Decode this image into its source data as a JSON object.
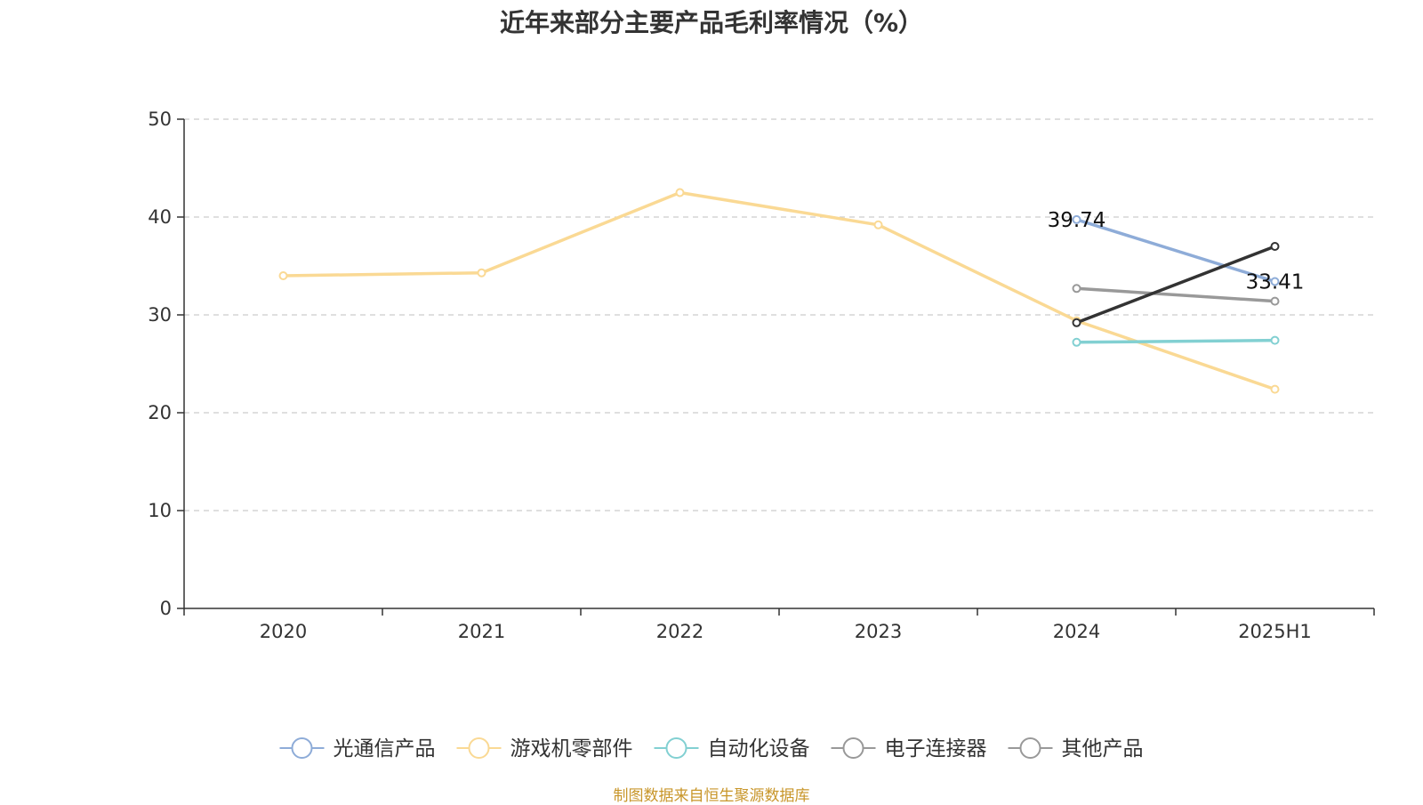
{
  "chart_data": {
    "type": "line",
    "title": "近年来部分主要产品毛利率情况（%）",
    "xlabel": "",
    "ylabel": "",
    "categories": [
      "2020",
      "2021",
      "2022",
      "2023",
      "2024",
      "2025H1"
    ],
    "ylim": [
      0,
      50
    ],
    "yticks": [
      0,
      10,
      20,
      30,
      40,
      50
    ],
    "grid": "horizontal-dashed",
    "legend_position": "bottom",
    "series": [
      {
        "name": "光通信产品",
        "color": "#8eacd8",
        "values": [
          null,
          null,
          null,
          null,
          39.74,
          33.41
        ]
      },
      {
        "name": "游戏机零部件",
        "color": "#fad994",
        "values": [
          34.0,
          34.3,
          42.5,
          39.2,
          29.4,
          22.4
        ]
      },
      {
        "name": "自动化设备",
        "color": "#82d0d2",
        "values": [
          null,
          null,
          null,
          null,
          27.2,
          27.4
        ]
      },
      {
        "name": "电子连接器",
        "color": "#999999",
        "values": [
          null,
          null,
          null,
          null,
          32.7,
          31.4
        ]
      },
      {
        "name": "其他产品",
        "color": "#333333",
        "legend_color": "#999999",
        "values": [
          null,
          null,
          null,
          null,
          29.2,
          37.0
        ]
      }
    ],
    "data_labels": [
      {
        "series": 0,
        "index": 4,
        "text": "39.74"
      },
      {
        "series": 0,
        "index": 5,
        "text": "33.41"
      }
    ]
  },
  "footer": {
    "source": "制图数据来自恒生聚源数据库",
    "source_color": "#c8962a"
  }
}
